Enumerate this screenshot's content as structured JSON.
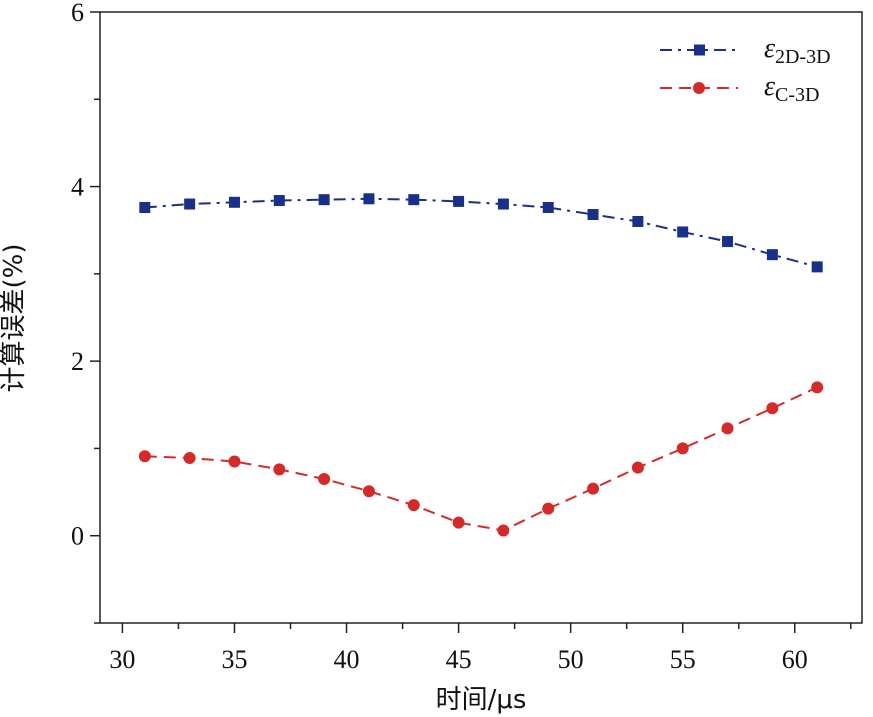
{
  "chart_data": {
    "type": "line",
    "xlabel": "时间/μs",
    "ylabel": "计算误差(%)",
    "xlim": [
      29,
      63
    ],
    "ylim": [
      -1,
      6
    ],
    "xticks": [
      30,
      35,
      40,
      45,
      50,
      55,
      60
    ],
    "yticks": [
      0,
      2,
      4,
      6
    ],
    "grid": false,
    "legend": "top-right",
    "x": [
      31,
      33,
      35,
      37,
      39,
      41,
      43,
      45,
      47,
      49,
      51,
      53,
      55,
      57,
      59,
      61
    ],
    "series": [
      {
        "name": "ε2D-3D",
        "symbol": "ε",
        "subscript": "2D-3D",
        "color": "#1a2f8a",
        "marker": "square",
        "line": "dash-dot",
        "values": [
          3.76,
          3.8,
          3.82,
          3.84,
          3.85,
          3.86,
          3.85,
          3.83,
          3.8,
          3.76,
          3.68,
          3.6,
          3.48,
          3.37,
          3.22,
          3.08
        ]
      },
      {
        "name": "εC-3D",
        "symbol": "ε",
        "subscript": "C-3D",
        "color": "#d42a2a",
        "marker": "circle",
        "line": "dash",
        "values": [
          0.91,
          0.89,
          0.85,
          0.76,
          0.65,
          0.51,
          0.35,
          0.15,
          0.06,
          0.31,
          0.54,
          0.78,
          1.0,
          1.23,
          1.46,
          1.7
        ]
      }
    ]
  }
}
